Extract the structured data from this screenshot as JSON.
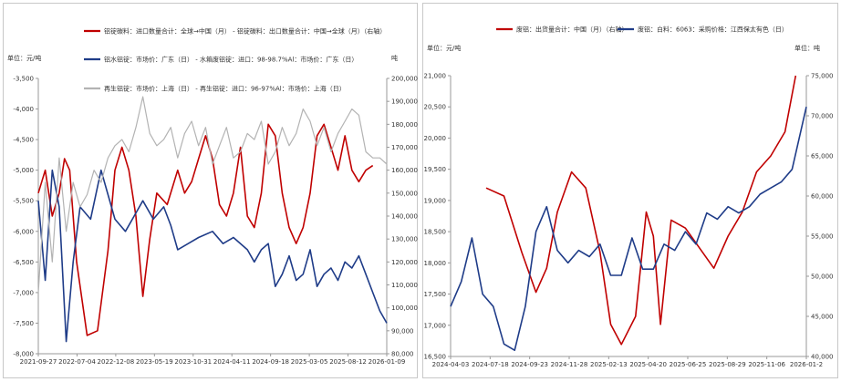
{
  "chart_data": [
    {
      "type": "line",
      "title": "",
      "left_unit": "单位：元/吨",
      "right_unit": "吨",
      "x_ticks": [
        "2021-09-27",
        "2022-07-04",
        "2022-12-08",
        "2023-05-19",
        "2023-10-31",
        "2024-04-11",
        "2024-09-18",
        "2025-03-05",
        "2025-08-12",
        "2026-01-09"
      ],
      "y_left": {
        "min": -8000,
        "max": -3500,
        "ticks": [
          -3500,
          -4000,
          -4500,
          -5000,
          -5500,
          -6000,
          -6500,
          -7000,
          -7500,
          -8000
        ],
        "tick_labels": [
          "-3,500",
          "-4,000",
          "-4,500",
          "-5,000",
          "-5,500",
          "-6,000",
          "-6,500",
          "-7,000",
          "-7,500",
          "-8,000"
        ]
      },
      "y_right": {
        "min": 80000,
        "max": 200000,
        "ticks": [
          200000,
          190000,
          180000,
          170000,
          160000,
          150000,
          140000,
          130000,
          120000,
          110000,
          100000,
          90000,
          80000
        ],
        "tick_labels": [
          "200,000",
          "190,000",
          "180,000",
          "170,000",
          "160,000",
          "150,000",
          "140,000",
          "130,000",
          "120,000",
          "110,000",
          "100,000",
          "90,000",
          "80,000"
        ]
      },
      "grid": false,
      "legend_position": "top",
      "series": [
        {
          "name": "铝锭碳料：进口数量合计：全球→中国（月） - 铝锭碳料：出口数量合计：中国→全球（月）（右轴）",
          "color": "#c00000",
          "axis": "right",
          "x": [
            0,
            0.02,
            0.04,
            0.06,
            0.075,
            0.09,
            0.11,
            0.14,
            0.17,
            0.2,
            0.22,
            0.24,
            0.26,
            0.28,
            0.3,
            0.32,
            0.34,
            0.37,
            0.4,
            0.42,
            0.44,
            0.46,
            0.48,
            0.5,
            0.52,
            0.54,
            0.56,
            0.58,
            0.6,
            0.62,
            0.64,
            0.66,
            0.68,
            0.7,
            0.72,
            0.74,
            0.76,
            0.78,
            0.8,
            0.82,
            0.84,
            0.86,
            0.88,
            0.9,
            0.92,
            0.94,
            0.96
          ],
          "y": [
            150000,
            160000,
            140000,
            150000,
            165000,
            160000,
            120000,
            88000,
            90000,
            125000,
            160000,
            170000,
            160000,
            140000,
            105000,
            130000,
            150000,
            145000,
            160000,
            150000,
            155000,
            165000,
            175000,
            165000,
            145000,
            140000,
            150000,
            170000,
            140000,
            135000,
            150000,
            180000,
            175000,
            150000,
            135000,
            128000,
            135000,
            150000,
            175000,
            180000,
            170000,
            160000,
            175000,
            160000,
            155000,
            160000,
            162000
          ]
        },
        {
          "name": "铝水铝锭：市场价：广东（日） - 水箱废铝锭：进口：98-98.7%Al：市场价：广东（日）",
          "color": "#1f3c88",
          "axis": "left",
          "x": [
            0,
            0.02,
            0.04,
            0.06,
            0.08,
            0.1,
            0.12,
            0.15,
            0.18,
            0.2,
            0.22,
            0.25,
            0.28,
            0.3,
            0.33,
            0.36,
            0.38,
            0.4,
            0.43,
            0.46,
            0.5,
            0.53,
            0.56,
            0.6,
            0.62,
            0.64,
            0.66,
            0.68,
            0.7,
            0.72,
            0.74,
            0.76,
            0.78,
            0.8,
            0.82,
            0.84,
            0.86,
            0.88,
            0.9,
            0.92,
            0.94,
            0.96,
            0.98,
            1
          ],
          "y": [
            -5500,
            -6800,
            -5000,
            -5600,
            -7800,
            -6500,
            -5600,
            -5800,
            -5000,
            -5400,
            -5800,
            -6000,
            -5700,
            -5500,
            -5800,
            -5600,
            -5900,
            -6300,
            -6200,
            -6100,
            -6000,
            -6200,
            -6100,
            -6300,
            -6500,
            -6300,
            -6200,
            -6900,
            -6700,
            -6400,
            -6800,
            -6700,
            -6300,
            -6900,
            -6700,
            -6600,
            -6800,
            -6500,
            -6600,
            -6400,
            -6700,
            -7000,
            -7300,
            -7500
          ]
        },
        {
          "name": "再生铝锭：市场价：上海（日） - 再生铝锭：进口：96-97%Al：市场价：上海（日）",
          "color": "#b3b3b3",
          "axis": "left",
          "x": [
            0,
            0.02,
            0.04,
            0.06,
            0.08,
            0.1,
            0.12,
            0.14,
            0.16,
            0.18,
            0.2,
            0.22,
            0.24,
            0.26,
            0.28,
            0.3,
            0.32,
            0.34,
            0.36,
            0.38,
            0.4,
            0.42,
            0.44,
            0.46,
            0.48,
            0.5,
            0.52,
            0.54,
            0.56,
            0.58,
            0.6,
            0.62,
            0.64,
            0.66,
            0.68,
            0.7,
            0.72,
            0.74,
            0.76,
            0.78,
            0.8,
            0.82,
            0.84,
            0.86,
            0.88,
            0.9,
            0.92,
            0.94,
            0.96,
            0.98,
            1
          ],
          "y": [
            -7000,
            -5200,
            -6500,
            -4800,
            -6000,
            -5200,
            -5600,
            -5400,
            -5000,
            -5200,
            -4800,
            -4600,
            -4500,
            -4700,
            -4300,
            -3800,
            -4400,
            -4600,
            -4500,
            -4300,
            -4800,
            -4400,
            -4200,
            -4600,
            -4300,
            -4900,
            -4600,
            -4300,
            -4800,
            -4700,
            -4400,
            -4500,
            -4200,
            -4900,
            -4700,
            -4300,
            -4600,
            -4400,
            -4000,
            -4200,
            -4600,
            -4300,
            -4700,
            -4400,
            -4200,
            -4000,
            -4100,
            -4700,
            -4800,
            -4800,
            -4900
          ]
        }
      ]
    },
    {
      "type": "line",
      "title": "",
      "left_unit": "单位：元/吨",
      "right_unit": "单位：吨",
      "x_ticks": [
        "2024-04-03",
        "2024-07-18",
        "2024-09-23",
        "2024-11-28",
        "2025-02-13",
        "2025-04-20",
        "2025-06-25",
        "2025-08-29",
        "2025-11-06",
        "2026-01-2"
      ],
      "y_left": {
        "min": 16500,
        "max": 21000,
        "ticks": [
          21000,
          20500,
          20000,
          19500,
          19000,
          18500,
          18000,
          17500,
          17000,
          16500
        ],
        "tick_labels": [
          "21,000",
          "20,500",
          "20,000",
          "19,500",
          "19,000",
          "18,500",
          "18,000",
          "17,500",
          "17,000",
          "16,500"
        ]
      },
      "y_right": {
        "min": 40000,
        "max": 75000,
        "ticks": [
          75000,
          70000,
          65000,
          60000,
          55000,
          50000,
          45000,
          40000
        ],
        "tick_labels": [
          "75,000",
          "70,000",
          "65,000",
          "60,000",
          "55,000",
          "50,000",
          "45,000",
          "40,000"
        ]
      },
      "grid": false,
      "legend_position": "top",
      "series": [
        {
          "name": "废铝：出货量合计：中国（月）（右轴）",
          "color": "#c00000",
          "axis": "right",
          "x": [
            0.1,
            0.15,
            0.2,
            0.24,
            0.27,
            0.3,
            0.34,
            0.38,
            0.42,
            0.45,
            0.48,
            0.52,
            0.55,
            0.57,
            0.59,
            0.62,
            0.66,
            0.7,
            0.74,
            0.78,
            0.82,
            0.86,
            0.9,
            0.94,
            0.97
          ],
          "y": [
            61000,
            60000,
            53000,
            48000,
            51000,
            58000,
            63000,
            61000,
            53000,
            44000,
            41500,
            45000,
            58000,
            55000,
            44000,
            57000,
            56000,
            53500,
            51000,
            55000,
            58000,
            63000,
            65000,
            68000,
            75000
          ]
        },
        {
          "name": "废铝：白料：6063：采购价格：江西保太有色（日）",
          "color": "#1f3c88",
          "axis": "left",
          "x": [
            0,
            0.03,
            0.06,
            0.09,
            0.12,
            0.15,
            0.18,
            0.21,
            0.24,
            0.27,
            0.3,
            0.33,
            0.36,
            0.39,
            0.42,
            0.45,
            0.48,
            0.51,
            0.54,
            0.57,
            0.6,
            0.63,
            0.66,
            0.69,
            0.72,
            0.75,
            0.78,
            0.81,
            0.84,
            0.87,
            0.9,
            0.93,
            0.96,
            0.98,
            1
          ],
          "y": [
            17300,
            17700,
            18400,
            17500,
            17300,
            16700,
            16600,
            17300,
            18500,
            18900,
            18200,
            18000,
            18200,
            18100,
            18300,
            17800,
            17800,
            18400,
            17900,
            17900,
            18300,
            18200,
            18500,
            18300,
            18800,
            18700,
            18900,
            18800,
            18900,
            19100,
            19200,
            19300,
            19500,
            20000,
            20500
          ]
        }
      ]
    }
  ]
}
